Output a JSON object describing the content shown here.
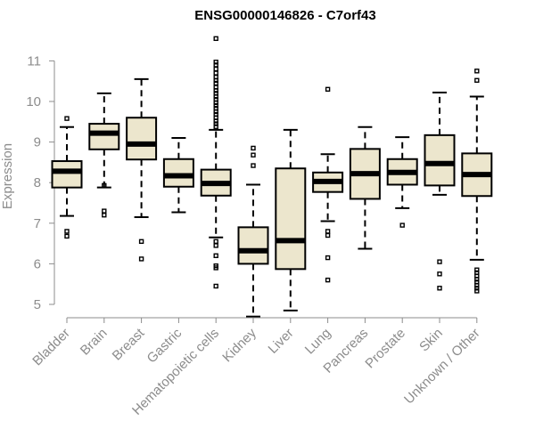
{
  "chart_data": {
    "type": "boxplot",
    "title": "ENSG00000146826 - C7orf43",
    "xlabel": "",
    "ylabel": "Expression",
    "ylim": [
      4.6,
      11.6
    ],
    "yticks": [
      5,
      6,
      7,
      8,
      9,
      10,
      11
    ],
    "box_fill": "#ece6cd",
    "categories": [
      "Bladder",
      "Brain",
      "Breast",
      "Gastric",
      "Hematopoietic cells",
      "Kidney",
      "Liver",
      "Lung",
      "Pancreas",
      "Prostate",
      "Skin",
      "Unknown / Other"
    ],
    "boxes": [
      {
        "name": "Bladder",
        "whisker_low": 7.18,
        "q1": 7.88,
        "median": 8.28,
        "q3": 8.53,
        "whisker_high": 9.37,
        "outliers": [
          9.58,
          6.8,
          6.68
        ]
      },
      {
        "name": "Brain",
        "whisker_low": 7.88,
        "q1": 8.82,
        "median": 9.22,
        "q3": 9.45,
        "whisker_high": 10.2,
        "outliers": [
          7.93,
          7.3,
          7.2
        ]
      },
      {
        "name": "Breast",
        "whisker_low": 7.15,
        "q1": 8.57,
        "median": 8.95,
        "q3": 9.6,
        "whisker_high": 10.55,
        "outliers": [
          6.55,
          6.12
        ]
      },
      {
        "name": "Gastric",
        "whisker_low": 7.27,
        "q1": 7.9,
        "median": 8.17,
        "q3": 8.58,
        "whisker_high": 9.1,
        "outliers": []
      },
      {
        "name": "Hematopoietic cells",
        "whisker_low": 6.65,
        "q1": 7.68,
        "median": 7.98,
        "q3": 8.32,
        "whisker_high": 9.3,
        "outliers": [
          11.55,
          10.97,
          10.9,
          10.8,
          10.7,
          10.6,
          10.52,
          10.45,
          10.35,
          10.27,
          10.2,
          10.12,
          10.05,
          9.97,
          9.9,
          9.83,
          9.75,
          9.68,
          9.6,
          9.52,
          9.45,
          9.38,
          6.55,
          6.45,
          6.2,
          5.95,
          5.9,
          5.45
        ]
      },
      {
        "name": "Kidney",
        "whisker_low": 4.7,
        "q1": 6.0,
        "median": 6.32,
        "q3": 6.9,
        "whisker_high": 7.95,
        "outliers": [
          8.85,
          8.68,
          8.42
        ]
      },
      {
        "name": "Liver",
        "whisker_low": 4.85,
        "q1": 5.87,
        "median": 6.57,
        "q3": 8.35,
        "whisker_high": 9.3,
        "outliers": []
      },
      {
        "name": "Lung",
        "whisker_low": 7.05,
        "q1": 7.77,
        "median": 8.03,
        "q3": 8.25,
        "whisker_high": 8.7,
        "outliers": [
          10.3,
          6.8,
          6.7,
          6.15,
          5.6
        ]
      },
      {
        "name": "Pancreas",
        "whisker_low": 6.37,
        "q1": 7.6,
        "median": 8.22,
        "q3": 8.83,
        "whisker_high": 9.37,
        "outliers": []
      },
      {
        "name": "Prostate",
        "whisker_low": 7.37,
        "q1": 7.95,
        "median": 8.25,
        "q3": 8.58,
        "whisker_high": 9.12,
        "outliers": [
          6.95
        ]
      },
      {
        "name": "Skin",
        "whisker_low": 7.7,
        "q1": 7.93,
        "median": 8.47,
        "q3": 9.17,
        "whisker_high": 10.22,
        "outliers": [
          6.05,
          5.75,
          5.4
        ]
      },
      {
        "name": "Unknown / Other",
        "whisker_low": 6.1,
        "q1": 7.67,
        "median": 8.2,
        "q3": 8.72,
        "whisker_high": 10.12,
        "outliers": [
          10.75,
          10.52,
          5.85,
          5.78,
          5.7,
          5.62,
          5.55,
          5.47,
          5.4,
          5.33
        ]
      }
    ]
  }
}
